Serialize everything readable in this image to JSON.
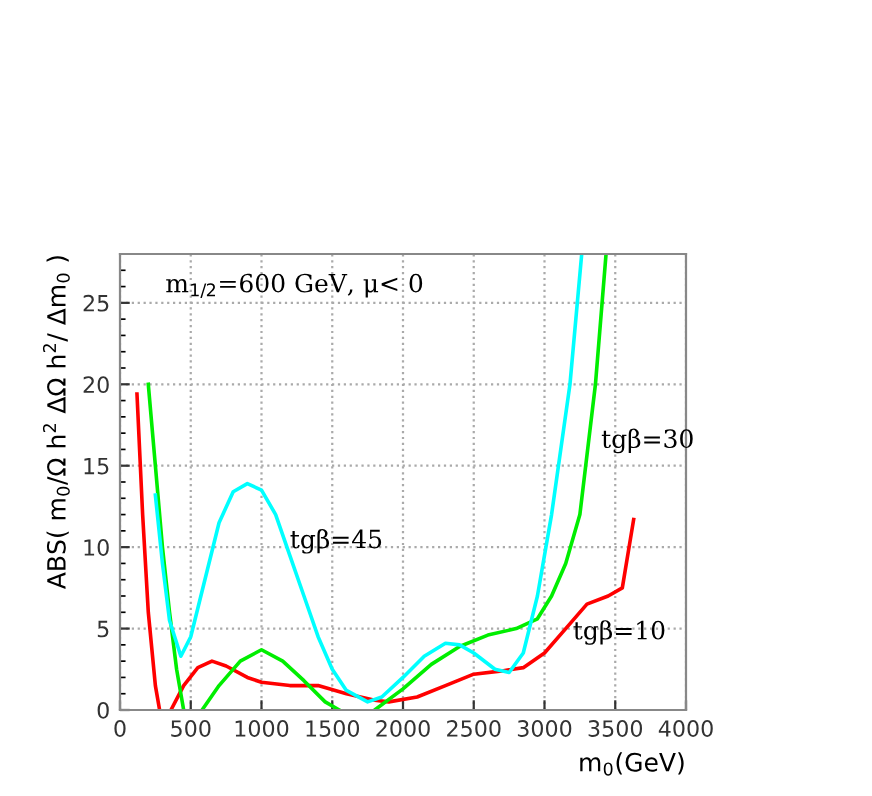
{
  "chart_data": {
    "type": "line",
    "xlabel": "m$_{0}$(GeV)",
    "ylabel": "ABS( m$_{0}$/Ω h$^{2}$ ΔΩ h$^{2}$/ Δm$_{0}$ )",
    "xlim": [
      0,
      4000
    ],
    "ylim": [
      0,
      28
    ],
    "xticks": [
      0,
      500,
      1000,
      1500,
      2000,
      2500,
      3000,
      3500,
      4000
    ],
    "yticks": [
      0,
      5,
      10,
      15,
      20,
      25
    ],
    "grid": true,
    "line_style": "solid",
    "marker": "none",
    "series": [
      {
        "name": "tgβ=10",
        "color": "#ff0000",
        "x": [
          120,
          160,
          200,
          250,
          280,
          320,
          360,
          450,
          550,
          650,
          750,
          900,
          1000,
          1200,
          1400,
          1600,
          1800,
          1900,
          2100,
          2300,
          2500,
          2700,
          2850,
          3000,
          3150,
          3300,
          3450,
          3550,
          3630
        ],
        "values": [
          19.4,
          12,
          6,
          1.5,
          0,
          null,
          0,
          1.5,
          2.6,
          3.0,
          2.7,
          2.0,
          1.7,
          1.5,
          1.5,
          1.0,
          0.6,
          0.5,
          0.8,
          1.5,
          2.2,
          2.4,
          2.6,
          3.5,
          5,
          6.5,
          7,
          7.5,
          11.7
        ]
      },
      {
        "name": "tgβ=30",
        "color": "#00ee00",
        "x": [
          200,
          250,
          300,
          350,
          400,
          450,
          520,
          580,
          700,
          850,
          1000,
          1150,
          1300,
          1450,
          1550,
          1700,
          1800,
          2000,
          2200,
          2400,
          2600,
          2800,
          2950,
          3050,
          3150,
          3250,
          3360,
          3435
        ],
        "values": [
          20,
          15,
          10,
          6,
          2.5,
          0,
          null,
          0,
          1.5,
          3.0,
          3.7,
          3.0,
          1.8,
          0.5,
          0,
          null,
          0,
          1.3,
          2.8,
          3.9,
          4.6,
          5.0,
          5.6,
          7,
          9,
          12,
          20,
          28
        ]
      },
      {
        "name": "tgβ=45",
        "color": "#00ffff",
        "x": [
          250,
          300,
          350,
          430,
          500,
          600,
          700,
          800,
          900,
          1000,
          1100,
          1200,
          1300,
          1400,
          1500,
          1600,
          1750,
          1850,
          2000,
          2150,
          2300,
          2400,
          2500,
          2650,
          2750,
          2850,
          2950,
          3050,
          3180,
          3263
        ],
        "values": [
          13.2,
          9,
          5.5,
          3.3,
          4.5,
          8,
          11.5,
          13.4,
          13.9,
          13.5,
          12,
          9.5,
          7,
          4.5,
          2.5,
          1.2,
          0.5,
          0.8,
          2,
          3.3,
          4.1,
          4,
          3.5,
          2.5,
          2.3,
          3.5,
          7,
          12,
          20,
          28
        ]
      }
    ],
    "annotations": [
      "m$_{1/2}$=600 GeV, μ< 0"
    ]
  }
}
